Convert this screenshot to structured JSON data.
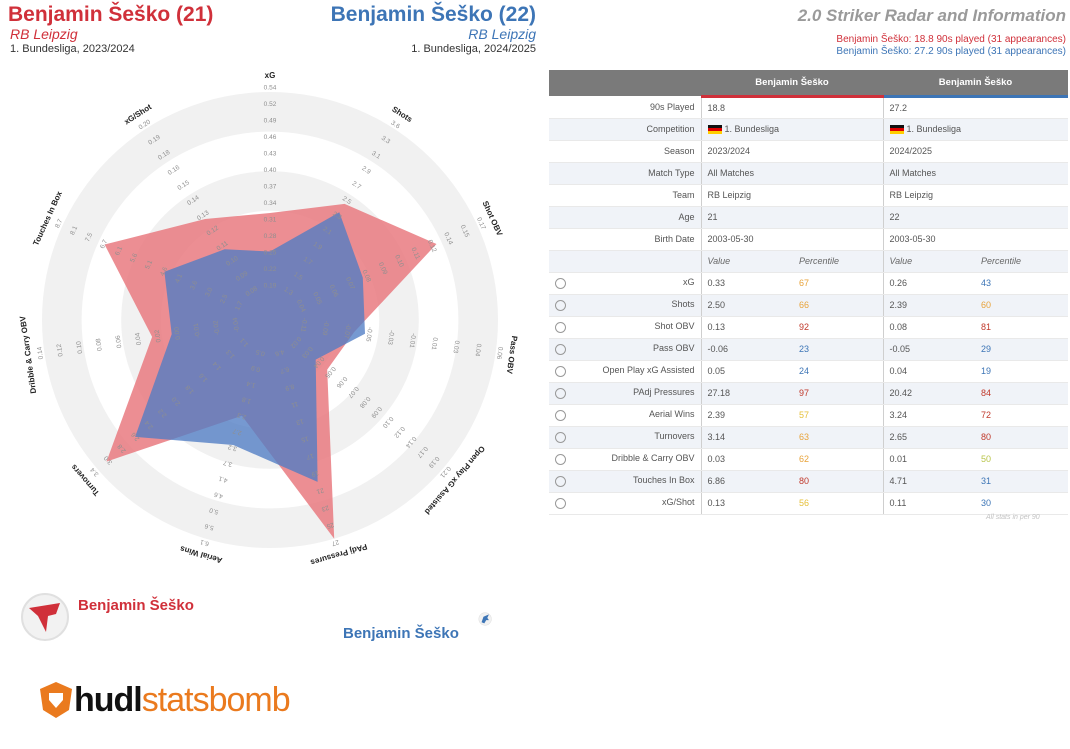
{
  "player1": {
    "name": "Benjamin Šeško (21)",
    "team": "RB Leipzig",
    "competition": "1. Bundesliga, 2023/2024",
    "color": "#d0303a"
  },
  "player2": {
    "name": "Benjamin Šeško (22)",
    "team": "RB Leipzig",
    "competition": "1. Bundesliga, 2024/2025",
    "color": "#3d75b6"
  },
  "radar_title": "2.0 Striker Radar and Information",
  "played_lines": [
    "Benjamin Šeško: 18.8 90s played (31 appearances)",
    "Benjamin Šeško: 27.2 90s played (31 appearances)"
  ],
  "legend": {
    "p1": "Benjamin Šeško",
    "p2": "Benjamin Šeško"
  },
  "brand": {
    "hudl": "hudl",
    "statsbomb": "statsbomb"
  },
  "table": {
    "col_headers": [
      "Benjamin Šeško",
      "Benjamin Šeško"
    ],
    "info_rows": [
      {
        "label": "90s Played",
        "v1": "18.8",
        "v2": "27.2"
      },
      {
        "label": "Competition",
        "v1": "1. Bundesliga",
        "v2": "1. Bundesliga",
        "flag": true
      },
      {
        "label": "Season",
        "v1": "2023/2024",
        "v2": "2024/2025"
      },
      {
        "label": "Match Type",
        "v1": "All Matches",
        "v2": "All Matches"
      },
      {
        "label": "Team",
        "v1": "RB Leipzig",
        "v2": "RB Leipzig"
      },
      {
        "label": "Age",
        "v1": "21",
        "v2": "22"
      },
      {
        "label": "Birth Date",
        "v1": "2003-05-30",
        "v2": "2003-05-30"
      }
    ],
    "value_header": "Value",
    "percentile_header": "Percentile",
    "metric_rows": [
      {
        "label": "xG",
        "v1": "0.33",
        "p1": "67",
        "c1": "#e8a33a",
        "v2": "0.26",
        "p2": "43",
        "c2": "#3d75b6"
      },
      {
        "label": "Shots",
        "v1": "2.50",
        "p1": "66",
        "c1": "#e8a33a",
        "v2": "2.39",
        "p2": "60",
        "c2": "#e8a33a"
      },
      {
        "label": "Shot OBV",
        "v1": "0.13",
        "p1": "92",
        "c1": "#c0392b",
        "v2": "0.08",
        "p2": "81",
        "c2": "#c0392b"
      },
      {
        "label": "Pass OBV",
        "v1": "-0.06",
        "p1": "23",
        "c1": "#3d75b6",
        "v2": "-0.05",
        "p2": "29",
        "c2": "#3d75b6"
      },
      {
        "label": "Open Play xG Assisted",
        "v1": "0.05",
        "p1": "24",
        "c1": "#3d75b6",
        "v2": "0.04",
        "p2": "19",
        "c2": "#3d75b6"
      },
      {
        "label": "PAdj Pressures",
        "v1": "27.18",
        "p1": "97",
        "c1": "#c0392b",
        "v2": "20.42",
        "p2": "84",
        "c2": "#c0392b"
      },
      {
        "label": "Aerial Wins",
        "v1": "2.39",
        "p1": "57",
        "c1": "#e6c03a",
        "v2": "3.24",
        "p2": "72",
        "c2": "#c0392b"
      },
      {
        "label": "Turnovers",
        "v1": "3.14",
        "p1": "63",
        "c1": "#e8a33a",
        "v2": "2.65",
        "p2": "80",
        "c2": "#c0392b"
      },
      {
        "label": "Dribble & Carry OBV",
        "v1": "0.03",
        "p1": "62",
        "c1": "#e8a33a",
        "v2": "0.01",
        "p2": "50",
        "c2": "#b8c44a"
      },
      {
        "label": "Touches In Box",
        "v1": "6.86",
        "p1": "80",
        "c1": "#c0392b",
        "v2": "4.71",
        "p2": "31",
        "c2": "#3d75b6"
      },
      {
        "label": "xG/Shot",
        "v1": "0.13",
        "p1": "56",
        "c1": "#e6c03a",
        "v2": "0.11",
        "p2": "30",
        "c2": "#3d75b6"
      }
    ],
    "footnote": "All stats in per 90"
  },
  "chart_data": {
    "type": "radar",
    "axes": [
      {
        "label": "xG",
        "ticks": [
          "0.19",
          "0.22",
          "0.25",
          "0.28",
          "0.31",
          "0.34",
          "0.37",
          "0.40",
          "0.43",
          "0.46",
          "0.49",
          "0.52",
          "0.54"
        ]
      },
      {
        "label": "Shots",
        "ticks": [
          "1.3",
          "1.5",
          "1.7",
          "1.9",
          "2.1",
          "2.3",
          "2.5",
          "2.7",
          "2.9",
          "3.1",
          "3.3",
          "3.6"
        ]
      },
      {
        "label": "Shot OBV",
        "ticks": [
          "0.04",
          "0.05",
          "0.06",
          "0.07",
          "0.08",
          "0.09",
          "0.10",
          "0.11",
          "0.12",
          "0.14",
          "0.15",
          "0.17"
        ]
      },
      {
        "label": "Pass OBV",
        "ticks": [
          "-0.11",
          "-0.09",
          "-0.07",
          "-0.05",
          "-0.03",
          "-0.01",
          "0.01",
          "0.03",
          "0.04",
          "0.06"
        ]
      },
      {
        "label": "Open Play xG Assisted",
        "ticks": [
          "0.02",
          "0.03",
          "0.04",
          "0.05",
          "0.06",
          "0.07",
          "0.08",
          "0.09",
          "0.10",
          "0.12",
          "0.14",
          "0.17",
          "0.19",
          "0.21"
        ]
      },
      {
        "label": "PAdj Pressures",
        "ticks": [
          "4.6",
          "6.7",
          "8.9",
          "11",
          "13",
          "15",
          "17",
          "19",
          "21",
          "23",
          "25",
          "27"
        ]
      },
      {
        "label": "Aerial Wins",
        "ticks": [
          "0.5",
          "0.9",
          "1.4",
          "1.8",
          "2.3",
          "2.7",
          "3.2",
          "3.7",
          "4.1",
          "4.6",
          "5.0",
          "5.6",
          "6.1"
        ]
      },
      {
        "label": "Turnovers",
        "ticks": [
          "1.1",
          "1.3",
          "1.4",
          "1.6",
          "1.8",
          "2.0",
          "2.2",
          "2.4",
          "2.6",
          "2.8",
          "3.0",
          "3.4"
        ]
      },
      {
        "label": "Dribble & Carry OBV",
        "ticks": [
          "-0.04",
          "-0.02",
          "-0.01",
          "0.00",
          "0.02",
          "0.04",
          "0.06",
          "0.08",
          "0.10",
          "0.12",
          "0.14"
        ]
      },
      {
        "label": "Touches In Box",
        "ticks": [
          "1.7",
          "2.5",
          "3.0",
          "3.6",
          "4.1",
          "4.6",
          "5.1",
          "5.6",
          "6.1",
          "6.7",
          "7.5",
          "8.1",
          "8.7"
        ]
      },
      {
        "label": "xG/Shot",
        "ticks": [
          "0.08",
          "0.09",
          "0.10",
          "0.11",
          "0.12",
          "0.13",
          "0.14",
          "0.15",
          "0.16",
          "0.18",
          "0.19",
          "0.20"
        ]
      }
    ],
    "series": [
      {
        "name": "Benjamin Šeško",
        "color": "#e8757b",
        "values": [
          0.33,
          2.5,
          0.13,
          -0.06,
          0.05,
          27.18,
          2.39,
          3.14,
          0.03,
          6.86,
          0.13
        ]
      },
      {
        "name": "Benjamin Šeško",
        "color": "#4f7cc4",
        "values": [
          0.26,
          2.39,
          0.08,
          -0.05,
          0.04,
          20.42,
          3.24,
          2.65,
          0.01,
          4.71,
          0.11
        ]
      }
    ]
  }
}
